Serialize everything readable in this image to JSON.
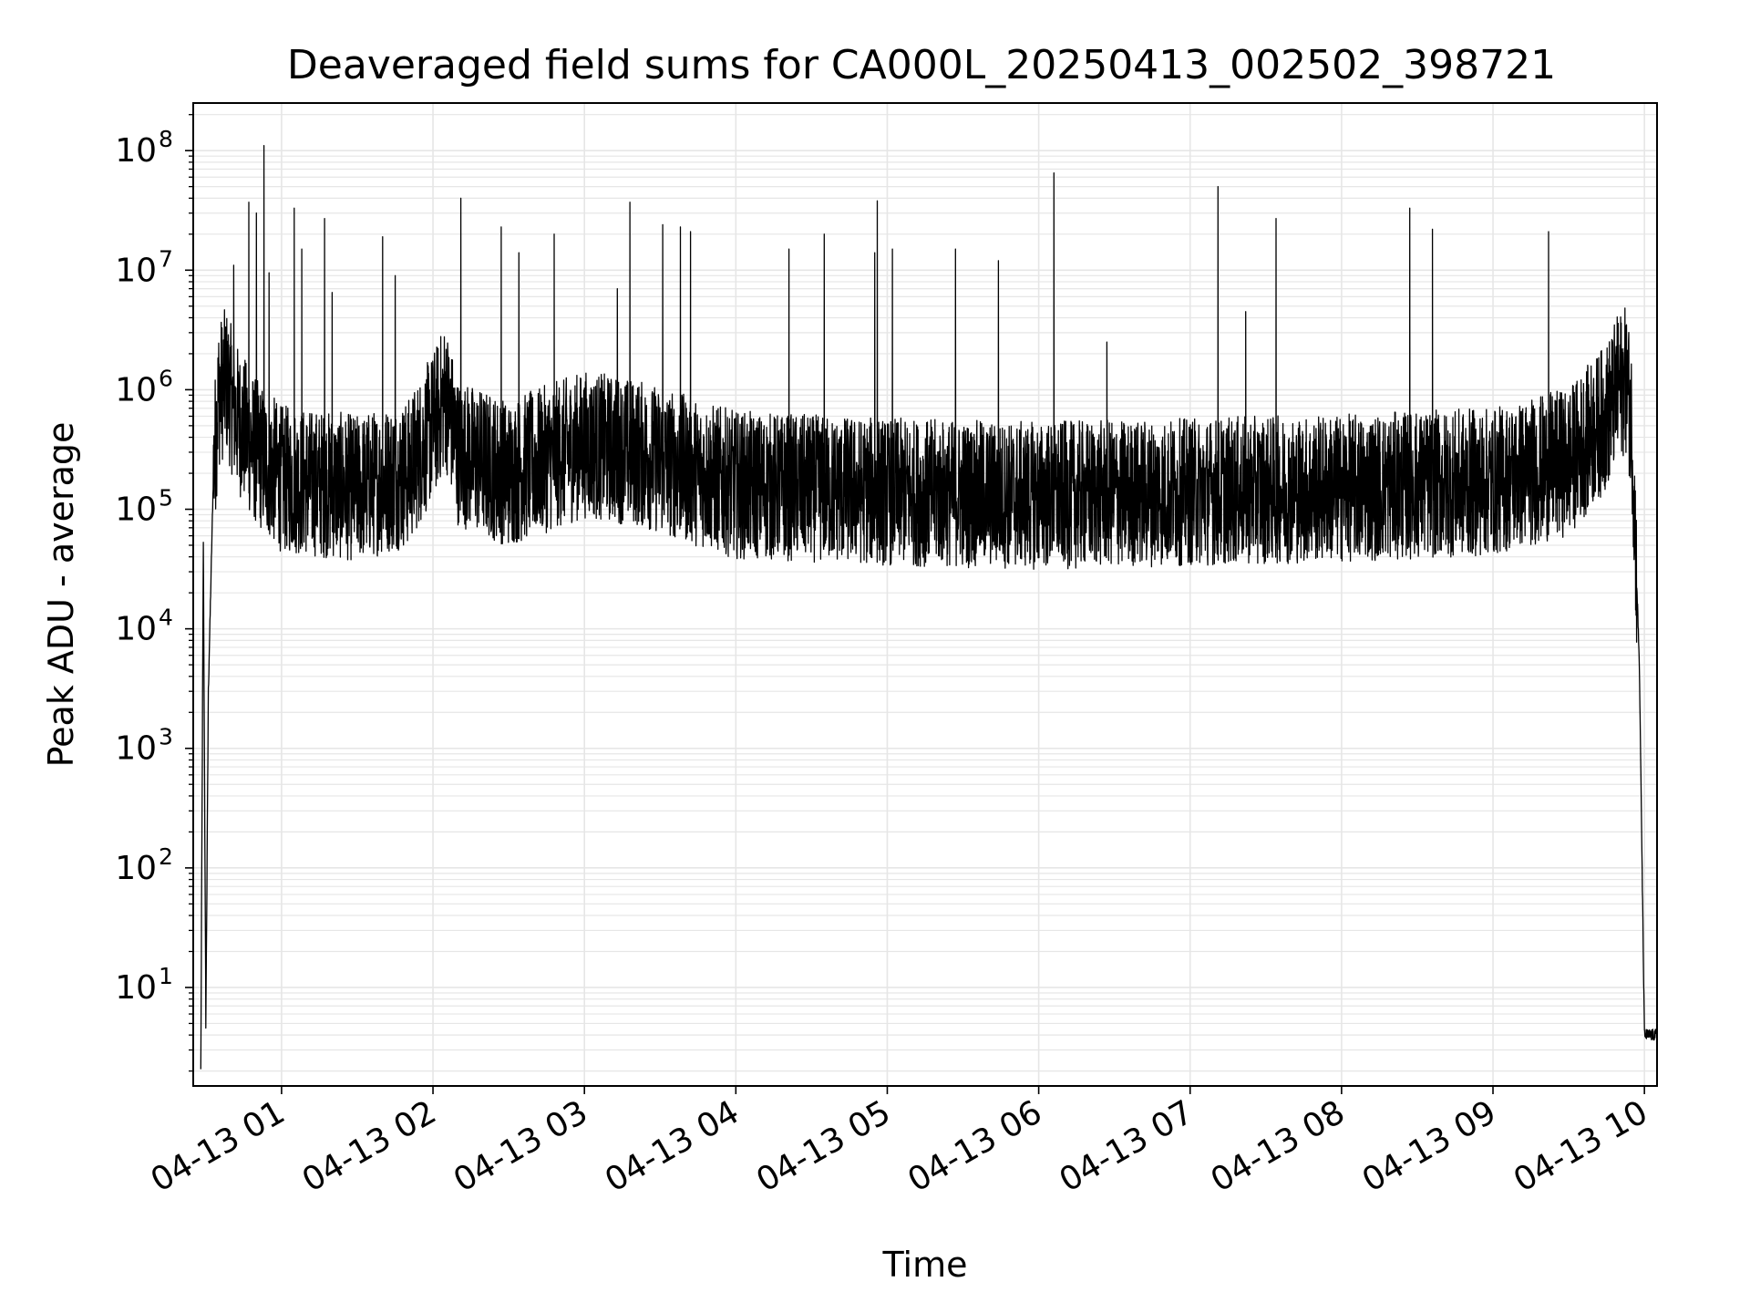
{
  "chart_data": {
    "type": "line",
    "title": "Deaveraged field sums for CA000L_20250413_002502_398721",
    "xlabel": "Time",
    "ylabel": "Peak ADU - average",
    "yscale": "log",
    "ylim": [
      1.5,
      250000000
    ],
    "xlim": [
      "2025-04-13 00:25:00",
      "2025-04-13 10:05:00"
    ],
    "grid": true,
    "line_color": "#000000",
    "grid_color": "#e6e6e6",
    "x_ticks": [
      "04-13 01",
      "04-13 02",
      "04-13 03",
      "04-13 04",
      "04-13 05",
      "04-13 06",
      "04-13 07",
      "04-13 08",
      "04-13 09",
      "04-13 10"
    ],
    "x_tick_times": [
      "2025-04-13 01:00",
      "2025-04-13 02:00",
      "2025-04-13 03:00",
      "2025-04-13 04:00",
      "2025-04-13 05:00",
      "2025-04-13 06:00",
      "2025-04-13 07:00",
      "2025-04-13 08:00",
      "2025-04-13 09:00",
      "2025-04-13 10:00"
    ],
    "y_ticks": [
      {
        "value": 10,
        "base": "10",
        "exp": "1"
      },
      {
        "value": 100,
        "base": "10",
        "exp": "2"
      },
      {
        "value": 1000,
        "base": "10",
        "exp": "3"
      },
      {
        "value": 10000,
        "base": "10",
        "exp": "4"
      },
      {
        "value": 100000,
        "base": "10",
        "exp": "5"
      },
      {
        "value": 1000000,
        "base": "10",
        "exp": "6"
      },
      {
        "value": 10000000,
        "base": "10",
        "exp": "7"
      },
      {
        "value": 100000000,
        "base": "10",
        "exp": "8"
      }
    ],
    "series": [
      {
        "profile": [
          [
            "2025-04-13 00:28",
            2
          ],
          [
            "2025-04-13 00:29",
            50000
          ],
          [
            "2025-04-13 00:30",
            5
          ],
          [
            "2025-04-13 00:31",
            3000
          ],
          [
            "2025-04-13 00:33",
            200000
          ],
          [
            "2025-04-13 00:35",
            900000
          ],
          [
            "2025-04-13 00:38",
            1200000
          ],
          [
            "2025-04-13 00:42",
            600000
          ],
          [
            "2025-04-13 00:50",
            300000
          ],
          [
            "2025-04-13 01:00",
            180000
          ],
          [
            "2025-04-13 01:30",
            150000
          ],
          [
            "2025-04-13 01:50",
            200000
          ],
          [
            "2025-04-13 02:00",
            500000
          ],
          [
            "2025-04-13 02:05",
            900000
          ],
          [
            "2025-04-13 02:10",
            300000
          ],
          [
            "2025-04-13 02:30",
            200000
          ],
          [
            "2025-04-13 03:00",
            350000
          ],
          [
            "2025-04-13 03:20",
            300000
          ],
          [
            "2025-04-13 04:00",
            160000
          ],
          [
            "2025-04-13 05:00",
            140000
          ],
          [
            "2025-04-13 06:00",
            130000
          ],
          [
            "2025-04-13 07:00",
            140000
          ],
          [
            "2025-04-13 08:00",
            150000
          ],
          [
            "2025-04-13 09:00",
            170000
          ],
          [
            "2025-04-13 09:30",
            250000
          ],
          [
            "2025-04-13 09:45",
            600000
          ],
          [
            "2025-04-13 09:50",
            1100000
          ],
          [
            "2025-04-13 09:53",
            1200000
          ],
          [
            "2025-04-13 09:55",
            500000
          ],
          [
            "2025-04-13 09:58",
            5000
          ],
          [
            "2025-04-13 10:00",
            4
          ],
          [
            "2025-04-13 10:05",
            4
          ]
        ],
        "spikes": [
          [
            "2025-04-13 00:38",
            2700000
          ],
          [
            "2025-04-13 00:41",
            11000000
          ],
          [
            "2025-04-13 00:47",
            37000000
          ],
          [
            "2025-04-13 00:50",
            30000000
          ],
          [
            "2025-04-13 00:53",
            110000000
          ],
          [
            "2025-04-13 00:55",
            9500000
          ],
          [
            "2025-04-13 01:05",
            33000000
          ],
          [
            "2025-04-13 01:08",
            15000000
          ],
          [
            "2025-04-13 01:17",
            27000000
          ],
          [
            "2025-04-13 01:20",
            6500000
          ],
          [
            "2025-04-13 01:40",
            19000000
          ],
          [
            "2025-04-13 01:45",
            9000000
          ],
          [
            "2025-04-13 02:11",
            40000000
          ],
          [
            "2025-04-13 02:27",
            23000000
          ],
          [
            "2025-04-13 02:34",
            14000000
          ],
          [
            "2025-04-13 02:48",
            20000000
          ],
          [
            "2025-04-13 03:13",
            7000000
          ],
          [
            "2025-04-13 03:18",
            37000000
          ],
          [
            "2025-04-13 03:31",
            24000000
          ],
          [
            "2025-04-13 03:38",
            23000000
          ],
          [
            "2025-04-13 03:42",
            21000000
          ],
          [
            "2025-04-13 04:21",
            15000000
          ],
          [
            "2025-04-13 04:35",
            20000000
          ],
          [
            "2025-04-13 04:55",
            14000000
          ],
          [
            "2025-04-13 04:56",
            38000000
          ],
          [
            "2025-04-13 05:02",
            15000000
          ],
          [
            "2025-04-13 05:27",
            15000000
          ],
          [
            "2025-04-13 05:44",
            12000000
          ],
          [
            "2025-04-13 06:06",
            65000000
          ],
          [
            "2025-04-13 06:27",
            2500000
          ],
          [
            "2025-04-13 07:11",
            50000000
          ],
          [
            "2025-04-13 07:22",
            4500000
          ],
          [
            "2025-04-13 07:34",
            27000000
          ],
          [
            "2025-04-13 08:27",
            33000000
          ],
          [
            "2025-04-13 08:36",
            22000000
          ],
          [
            "2025-04-13 09:22",
            21000000
          ],
          [
            "2025-04-13 09:48",
            2500000
          ]
        ]
      }
    ]
  }
}
